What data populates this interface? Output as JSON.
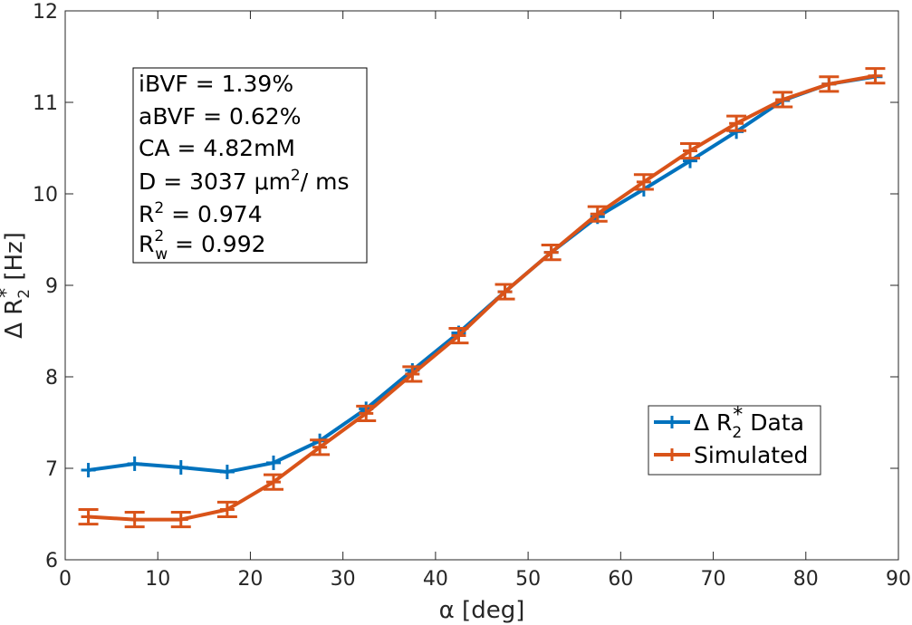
{
  "chart_data": {
    "type": "line",
    "title": "",
    "xlabel": "α [deg]",
    "ylabel": "Δ R2* [Hz]",
    "ylabel_parts": {
      "base": "Δ R",
      "sub": "2",
      "sup": "*",
      "unit": " [Hz]"
    },
    "xlim": [
      0,
      90
    ],
    "ylim": [
      6,
      12
    ],
    "xticks": [
      0,
      10,
      20,
      30,
      40,
      50,
      60,
      70,
      80,
      90
    ],
    "yticks": [
      6,
      7,
      8,
      9,
      10,
      11,
      12
    ],
    "grid": false,
    "legend_position": "lower-right",
    "x": [
      2.5,
      7.5,
      12.5,
      17.5,
      22.5,
      27.5,
      32.5,
      37.5,
      42.5,
      47.5,
      52.5,
      57.5,
      62.5,
      67.5,
      72.5,
      77.5,
      82.5,
      87.5
    ],
    "series": [
      {
        "name": "Δ R2* Data",
        "legend_parts": {
          "base": "Δ R",
          "sub": "2",
          "sup": "*",
          "tail": " Data"
        },
        "color": "#0072BD",
        "marker": "plus",
        "values": [
          6.98,
          7.05,
          7.01,
          6.96,
          7.06,
          7.3,
          7.65,
          8.07,
          8.48,
          8.93,
          9.36,
          9.75,
          10.05,
          10.36,
          10.68,
          11.02,
          11.2,
          11.28
        ]
      },
      {
        "name": "Simulated",
        "legend_parts": {
          "base": "Simulated",
          "sub": "",
          "sup": "",
          "tail": ""
        },
        "color": "#D95319",
        "marker": "errorbar",
        "values": [
          6.47,
          6.44,
          6.44,
          6.55,
          6.85,
          7.23,
          7.6,
          8.03,
          8.45,
          8.93,
          9.36,
          9.78,
          10.13,
          10.47,
          10.77,
          11.03,
          11.2,
          11.29
        ],
        "error": [
          0.08,
          0.08,
          0.08,
          0.08,
          0.08,
          0.08,
          0.08,
          0.08,
          0.08,
          0.08,
          0.08,
          0.08,
          0.08,
          0.08,
          0.08,
          0.08,
          0.08,
          0.08
        ]
      }
    ],
    "annotations": {
      "ibvf": "iBVF = 1.39%",
      "abvf": "aBVF = 0.62%",
      "ca": "CA = 4.82mM",
      "d_prefix": "D = 3037 μm",
      "d_sup": "2",
      "d_suffix": "/ ms",
      "r2_prefix": "R",
      "r2_sup": "2",
      "r2_value": " = 0.974",
      "rw2_prefix": "R",
      "rw2_sup": "2",
      "rw2_sub": "w",
      "rw2_value": " = 0.992"
    }
  }
}
